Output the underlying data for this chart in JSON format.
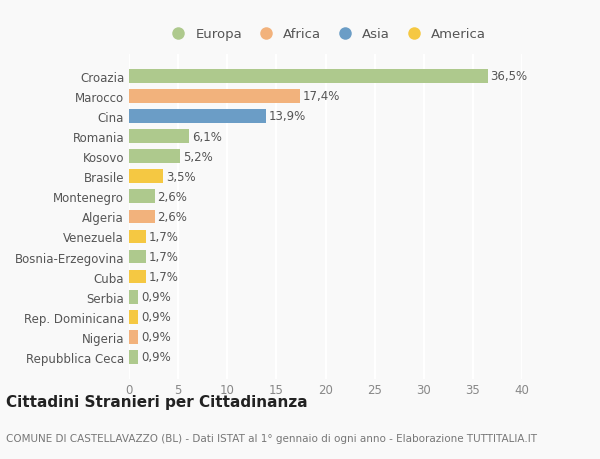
{
  "categories": [
    "Croazia",
    "Marocco",
    "Cina",
    "Romania",
    "Kosovo",
    "Brasile",
    "Montenegro",
    "Algeria",
    "Venezuela",
    "Bosnia-Erzegovina",
    "Cuba",
    "Serbia",
    "Rep. Dominicana",
    "Nigeria",
    "Repubblica Ceca"
  ],
  "values": [
    36.5,
    17.4,
    13.9,
    6.1,
    5.2,
    3.5,
    2.6,
    2.6,
    1.7,
    1.7,
    1.7,
    0.9,
    0.9,
    0.9,
    0.9
  ],
  "labels": [
    "36,5%",
    "17,4%",
    "13,9%",
    "6,1%",
    "5,2%",
    "3,5%",
    "2,6%",
    "2,6%",
    "1,7%",
    "1,7%",
    "1,7%",
    "0,9%",
    "0,9%",
    "0,9%",
    "0,9%"
  ],
  "colors": [
    "#aec98d",
    "#f2b27c",
    "#6b9dc6",
    "#aec98d",
    "#aec98d",
    "#f5c842",
    "#aec98d",
    "#f2b27c",
    "#f5c842",
    "#aec98d",
    "#f5c842",
    "#aec98d",
    "#f5c842",
    "#f2b27c",
    "#aec98d"
  ],
  "legend_labels": [
    "Europa",
    "Africa",
    "Asia",
    "America"
  ],
  "legend_colors": [
    "#aec98d",
    "#f2b27c",
    "#6b9dc6",
    "#f5c842"
  ],
  "title": "Cittadini Stranieri per Cittadinanza",
  "subtitle": "COMUNE DI CASTELLAVAZZO (BL) - Dati ISTAT al 1° gennaio di ogni anno - Elaborazione TUTTITALIA.IT",
  "xlim": [
    0,
    40
  ],
  "xticks": [
    0,
    5,
    10,
    15,
    20,
    25,
    30,
    35,
    40
  ],
  "background_color": "#f9f9f9",
  "grid_color": "#ffffff",
  "bar_height": 0.68,
  "label_fontsize": 8.5,
  "tick_fontsize": 8.5,
  "title_fontsize": 11,
  "subtitle_fontsize": 7.5
}
